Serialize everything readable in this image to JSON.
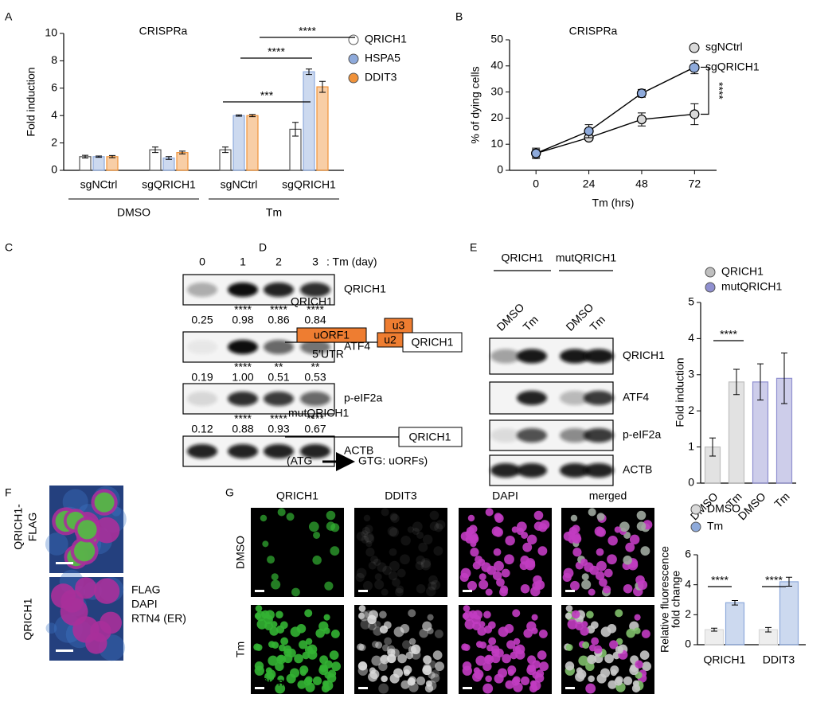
{
  "panel_labels": [
    "A",
    "B",
    "C",
    "D",
    "E",
    "F",
    "G"
  ],
  "chart_data": [
    {
      "type": "bar",
      "title": "CRISPRa",
      "y_label": "Fold induction",
      "categories": [
        "sgNCtrl",
        "sgQRICH1",
        "sgNCtrl",
        "sgQRICH1"
      ],
      "groups": [
        "DMSO",
        "Tm"
      ],
      "series": [
        {
          "name": "QRICH1",
          "color": "#ffffff",
          "values": [
            1.0,
            1.5,
            1.5,
            3.0
          ],
          "errors": [
            0.1,
            0.2,
            0.2,
            0.5
          ]
        },
        {
          "name": "HSPA5",
          "color": "#8eaadb",
          "values": [
            1.0,
            0.9,
            4.0,
            7.2
          ],
          "errors": [
            0.05,
            0.1,
            0.05,
            0.2
          ]
        },
        {
          "name": "DDIT3",
          "color": "#f0923a",
          "values": [
            1.0,
            1.3,
            4.0,
            6.1
          ],
          "errors": [
            0.08,
            0.1,
            0.08,
            0.4
          ]
        }
      ],
      "ylim": [
        0,
        10
      ],
      "yticks": [
        0,
        2,
        4,
        6,
        8,
        10
      ],
      "annotations": [
        "***",
        "****",
        "****"
      ]
    },
    {
      "type": "line",
      "title": "CRISPRa",
      "x_label": "Tm (hrs)",
      "y_label": "% of dying cells",
      "x": [
        0,
        24,
        48,
        72
      ],
      "series": [
        {
          "name": "sgNCtrl",
          "color": "#d9d9d9",
          "values": [
            6.5,
            12.5,
            19.5,
            21.5
          ],
          "errors": [
            2,
            1,
            2.5,
            4
          ]
        },
        {
          "name": "sgQRICH1",
          "color": "#8eaadb",
          "values": [
            6.5,
            15,
            29.5,
            39.5
          ],
          "errors": [
            1.5,
            2.5,
            1.5,
            2.5
          ]
        }
      ],
      "xlim": [
        -12,
        82
      ],
      "xticks": [
        0,
        24,
        48,
        72
      ],
      "ylim": [
        0,
        50
      ],
      "yticks": [
        0,
        10,
        20,
        30,
        40,
        50
      ],
      "annotations": [
        "****"
      ]
    },
    {
      "type": "bar",
      "y_label": "Fold induction",
      "categories": [
        "DMSO",
        "Tm",
        "DMSO",
        "Tm"
      ],
      "series": [
        {
          "name": "QRICH1",
          "color": "#bfbfbf",
          "values": [
            1.0,
            2.8,
            null,
            null
          ],
          "errors": [
            0.25,
            0.35,
            null,
            null
          ]
        },
        {
          "name": "mutQRICH1",
          "color": "#9090d0",
          "values": [
            null,
            null,
            2.8,
            2.9
          ],
          "errors": [
            null,
            null,
            0.5,
            0.7
          ]
        }
      ],
      "ylim": [
        0,
        5
      ],
      "yticks": [
        0,
        1,
        2,
        3,
        4,
        5
      ],
      "annotations": [
        "****"
      ]
    },
    {
      "type": "bar",
      "y_label": [
        "Relative fluorescence",
        "fold change"
      ],
      "categories": [
        "QRICH1",
        "DDIT3"
      ],
      "series": [
        {
          "name": "DMSO",
          "color": "#d9d9d9",
          "values": [
            1.0,
            1.0
          ],
          "errors": [
            0.1,
            0.15
          ]
        },
        {
          "name": "Tm",
          "color": "#8eaadb",
          "values": [
            2.8,
            4.2
          ],
          "errors": [
            0.15,
            0.3
          ]
        }
      ],
      "ylim": [
        0,
        6
      ],
      "yticks": [
        0,
        2,
        4,
        6
      ],
      "annotations": [
        "****",
        "****"
      ]
    }
  ],
  "blot_c": {
    "lanes": [
      "0",
      "1",
      "2",
      "3"
    ],
    "lane_note": ": Tm (day)",
    "rows": [
      {
        "name": "QRICH1",
        "stars": [
          "****",
          "****",
          "****"
        ],
        "values": [
          "0.25",
          "0.98",
          "0.86",
          "0.84"
        ]
      },
      {
        "name": "ATF4",
        "stars": [
          "****",
          "**",
          "**"
        ],
        "values": [
          "0.19",
          "1.00",
          "0.51",
          "0.53"
        ]
      },
      {
        "name": "p-eIF2a",
        "stars": [
          "****",
          "****",
          "****"
        ],
        "values": [
          "0.12",
          "0.88",
          "0.93",
          "0.67"
        ]
      },
      {
        "name": "ACTB"
      }
    ]
  },
  "diagram_d": {
    "title": "QRICH1",
    "boxes": [
      "uORF1",
      "u3",
      "u2",
      "QRICH1"
    ],
    "utr": "5’UTR",
    "mutant_title": "mutQRICH1",
    "mutant_box": "QRICH1",
    "note_left": "(ATG",
    "note_right": "GTG: uORFs)"
  },
  "blot_e": {
    "groups": [
      "QRICH1",
      "mutQRICH1"
    ],
    "lanes": [
      "DMSO",
      "Tm",
      "DMSO",
      "Tm"
    ],
    "rows": [
      "QRICH1",
      "ATF4",
      "p-eIF2a",
      "ACTB"
    ]
  },
  "image_f": {
    "row_labels": [
      [
        "QRICH1-",
        "FLAG"
      ],
      [
        "QRICH1"
      ]
    ],
    "channels": [
      "FLAG",
      "DAPI",
      "RTN4 (ER)"
    ]
  },
  "image_g": {
    "columns": [
      "QRICH1",
      "DDIT3",
      "DAPI",
      "merged"
    ],
    "rows": [
      "DMSO",
      "Tm"
    ],
    "scale": "20µm"
  }
}
